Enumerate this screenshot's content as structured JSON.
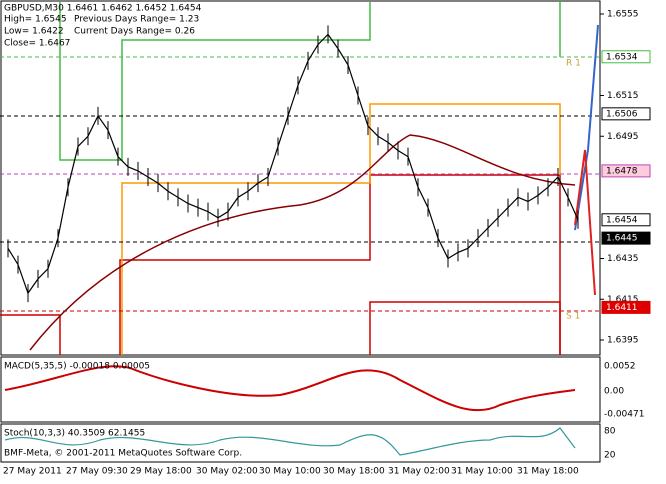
{
  "header": {
    "symbol_line": "GBPUSD,M30  1.6461 1.6462 1.6452 1.6454",
    "high": "High= 1.6545",
    "low": "Low= 1.6422",
    "close": "Close= 1.6467",
    "prev_range": "Previous Days Range= 1.23",
    "cur_range": "Current Days Range= 0.26"
  },
  "price_axis": {
    "range": [
      1.6555,
      1.6395
    ],
    "ticks": [
      1.6555,
      1.6515,
      1.6495,
      1.6435,
      1.6415,
      1.6395
    ],
    "markers": [
      {
        "value": 1.6534,
        "label": "1.6534",
        "style": "green"
      },
      {
        "value": 1.6506,
        "label": "1.6506",
        "style": "plain"
      },
      {
        "value": 1.6478,
        "label": "1.6478",
        "style": "pink"
      },
      {
        "value": 1.6454,
        "label": "1.6454",
        "style": "plain"
      },
      {
        "value": 1.6445,
        "label": "1.6445",
        "style": "black"
      },
      {
        "value": 1.6411,
        "label": "1.6411",
        "style": "red"
      }
    ]
  },
  "levels": {
    "r1": "R 1",
    "s1": "S 1"
  },
  "closes": [
    1.644,
    1.6432,
    1.6418,
    1.6425,
    1.643,
    1.6445,
    1.647,
    1.649,
    1.6495,
    1.6505,
    1.6498,
    1.6485,
    1.648,
    1.6478,
    1.6475,
    1.6472,
    1.6468,
    1.6465,
    1.6462,
    1.646,
    1.6458,
    1.6455,
    1.6458,
    1.6465,
    1.6468,
    1.6472,
    1.6475,
    1.649,
    1.6505,
    1.652,
    1.6532,
    1.654,
    1.6545,
    1.6538,
    1.653,
    1.6515,
    1.65,
    1.6495,
    1.6492,
    1.6488,
    1.6485,
    1.647,
    1.646,
    1.6445,
    1.6435,
    1.6438,
    1.644,
    1.6445,
    1.645,
    1.6455,
    1.646,
    1.6465,
    1.6463,
    1.6466,
    1.647,
    1.6475,
    1.6465,
    1.6454
  ],
  "macd": {
    "label": "MACD(5,35,5) -0.00018 0.00005",
    "scale": [
      "0.0052",
      "0.00",
      "-0.00471"
    ]
  },
  "stoch": {
    "label": "Stoch(10,3,3) 40.3509 62.1455",
    "scale": [
      "80",
      "20"
    ]
  },
  "copyright": "BMF-Meta, © 2001-2011 MetaQuotes Software Corp.",
  "time_axis": [
    "27 May 2011",
    "27 May 09:30",
    "29 May 18:00",
    "30 May 02:00",
    "30 May 10:00",
    "30 May 18:00",
    "31 May 02:00",
    "31 May 10:00",
    "31 May 18:00"
  ]
}
